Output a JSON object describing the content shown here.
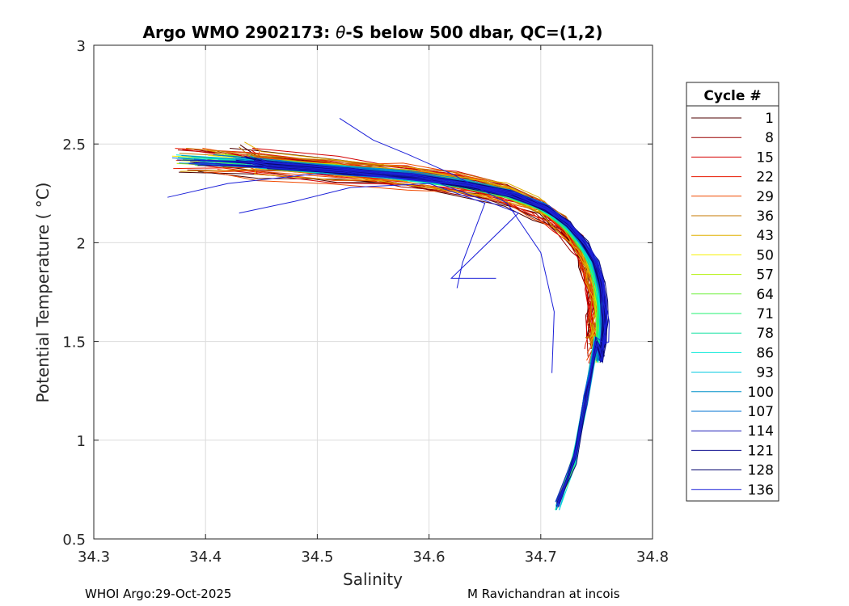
{
  "footer": {
    "left": "WHOI Argo:29-Oct-2025",
    "right": "M Ravichandran at incois"
  },
  "chart_data": {
    "type": "line",
    "title_parts": [
      "Argo WMO 2902173: ",
      "θ",
      "-S below 500 dbar,  QC=(1,2)"
    ],
    "xlabel": "Salinity",
    "ylabel": "Potential Temperature ( °C)",
    "xlim": [
      34.3,
      34.8
    ],
    "ylim": [
      0.5,
      3.0
    ],
    "xticks": [
      34.3,
      34.4,
      34.5,
      34.6,
      34.7,
      34.8
    ],
    "xtick_labels": [
      "34.3",
      "34.4",
      "34.5",
      "34.6",
      "34.7",
      "34.8"
    ],
    "yticks": [
      0.5,
      1.0,
      1.5,
      2.0,
      2.5,
      3.0
    ],
    "ytick_labels": [
      "0.5",
      "1",
      "1.5",
      "2",
      "2.5",
      "3"
    ],
    "grid": true,
    "legend": {
      "title": "Cycle #",
      "placement": "outside-right",
      "entries": [
        {
          "label": "1",
          "color": "#4d0000"
        },
        {
          "label": "8",
          "color": "#990000"
        },
        {
          "label": "15",
          "color": "#d40000"
        },
        {
          "label": "22",
          "color": "#e81a00"
        },
        {
          "label": "29",
          "color": "#f04a00"
        },
        {
          "label": "36",
          "color": "#c47a00"
        },
        {
          "label": "43",
          "color": "#e0b000"
        },
        {
          "label": "50",
          "color": "#f5f000"
        },
        {
          "label": "57",
          "color": "#b0f000"
        },
        {
          "label": "64",
          "color": "#70f040"
        },
        {
          "label": "71",
          "color": "#20f070"
        },
        {
          "label": "78",
          "color": "#10e0a0"
        },
        {
          "label": "86",
          "color": "#00e8d8"
        },
        {
          "label": "93",
          "color": "#00c8e0"
        },
        {
          "label": "100",
          "color": "#0090c8"
        },
        {
          "label": "107",
          "color": "#0070d0"
        },
        {
          "label": "114",
          "color": "#2020b8"
        },
        {
          "label": "121",
          "color": "#101090"
        },
        {
          "label": "128",
          "color": "#080870"
        },
        {
          "label": "136",
          "color": "#1c20d8"
        }
      ]
    },
    "series_shape": {
      "description": "Theta-S curves below 500 dbar, one per cycle",
      "temperature_profile": [
        2.42,
        2.4,
        2.37,
        2.34,
        2.3,
        2.25,
        2.18,
        2.1,
        2.0,
        1.9,
        1.8,
        1.7,
        1.6,
        1.5,
        1.4
      ],
      "salinity_profile": [
        34.38,
        34.45,
        34.52,
        34.58,
        34.63,
        34.67,
        34.7,
        34.72,
        34.735,
        34.745,
        34.75,
        34.752,
        34.753,
        34.752,
        34.75
      ],
      "deep_tail": {
        "salinity": [
          34.75,
          34.74,
          34.73,
          34.715
        ],
        "temperature": [
          1.5,
          1.2,
          0.9,
          0.67
        ]
      }
    }
  }
}
